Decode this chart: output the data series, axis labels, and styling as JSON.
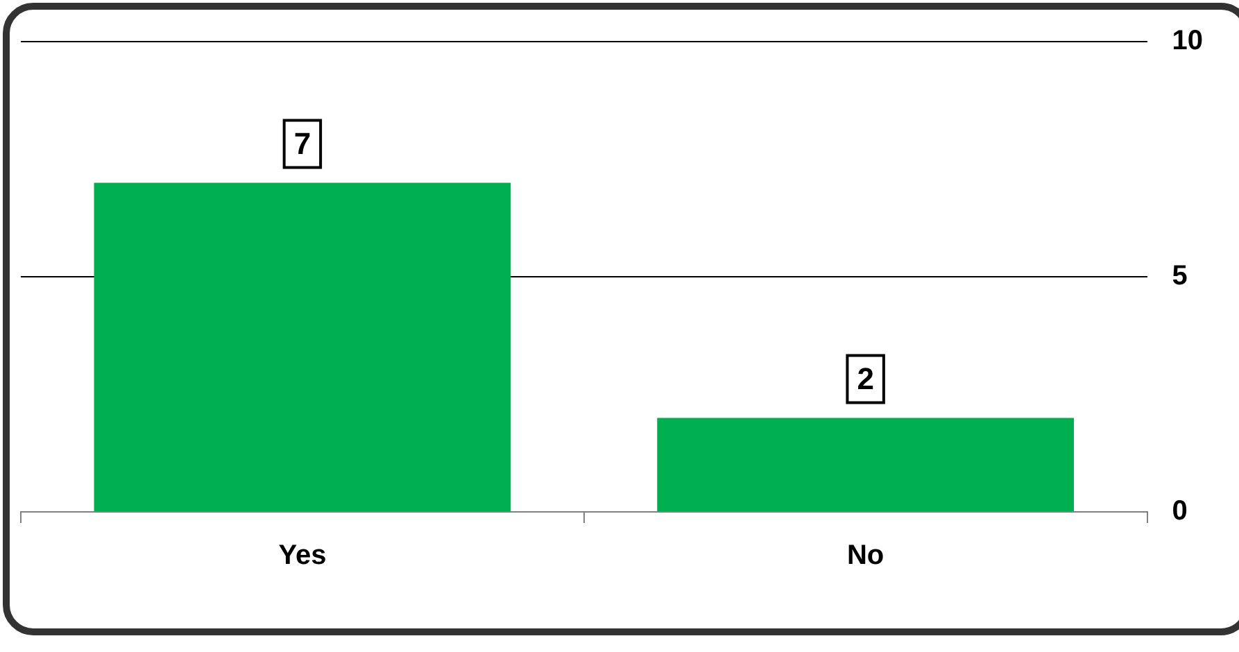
{
  "chart_data": {
    "type": "bar",
    "categories": [
      "Yes",
      "No"
    ],
    "values": [
      7,
      2
    ],
    "color": "#00b050",
    "ylim": [
      0,
      10
    ],
    "yticks": [
      0,
      5,
      10
    ],
    "grid": "y",
    "data_labels": true,
    "legend": false
  }
}
